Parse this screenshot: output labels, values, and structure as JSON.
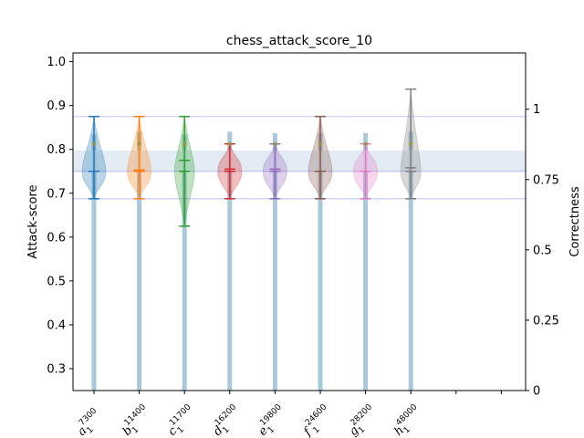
{
  "chart_data": {
    "type": "violin",
    "title": "chess_attack_score_10",
    "ylabel": "Attack-score",
    "y2label": "Correctness",
    "ylim": [
      0.25,
      1.02
    ],
    "y2lim": [
      0,
      1.2
    ],
    "yticks": [
      "0.3",
      "0.4",
      "0.5",
      "0.6",
      "0.7",
      "0.8",
      "0.9",
      "1.0"
    ],
    "y2ticks": [
      "0",
      "0.25",
      "0.5",
      "0.75",
      "1"
    ],
    "reference_lines": [
      0.6875,
      0.75,
      0.875
    ],
    "reference_band": [
      0.75,
      0.7975
    ],
    "categories": [
      {
        "letter": "a",
        "sub": "1",
        "sup": "7300"
      },
      {
        "letter": "b",
        "sub": "1",
        "sup": "11400"
      },
      {
        "letter": "c",
        "sub": "1",
        "sup": "11700"
      },
      {
        "letter": "d",
        "sub": "1",
        "sup": "16200"
      },
      {
        "letter": "e",
        "sub": "1",
        "sup": "19800"
      },
      {
        "letter": "f",
        "sub": "1",
        "sup": "24600"
      },
      {
        "letter": "g",
        "sub": "1",
        "sup": "28200"
      },
      {
        "letter": "h",
        "sub": "1",
        "sup": "48000"
      }
    ],
    "series": [
      {
        "color": "#1f77b4",
        "min": 0.6875,
        "max": 0.875,
        "mean": 0.75,
        "median": 0.75,
        "dot": 0.8125,
        "correctness": 0.91
      },
      {
        "color": "#ff7f0e",
        "min": 0.6875,
        "max": 0.875,
        "mean": 0.753,
        "median": 0.75,
        "dot": 0.8125,
        "correctness": 0.92
      },
      {
        "color": "#2ca02c",
        "min": 0.625,
        "max": 0.875,
        "mean": 0.775,
        "median": 0.75,
        "dot": 0.8125,
        "correctness": 0.91
      },
      {
        "color": "#d62728",
        "min": 0.6875,
        "max": 0.8125,
        "mean": 0.755,
        "median": 0.75,
        "dot": 0.8125,
        "correctness": 0.92
      },
      {
        "color": "#9467bd",
        "min": 0.6875,
        "max": 0.8125,
        "mean": 0.755,
        "median": 0.75,
        "dot": 0.8125,
        "correctness": 0.915
      },
      {
        "color": "#8c564b",
        "min": 0.6875,
        "max": 0.875,
        "mean": 0.75,
        "median": 0.75,
        "dot": 0.8125,
        "correctness": 0.915
      },
      {
        "color": "#e377c2",
        "min": 0.6875,
        "max": 0.8125,
        "mean": 0.75,
        "median": 0.75,
        "dot": 0.8125,
        "correctness": 0.915
      },
      {
        "color": "#7f7f7f",
        "min": 0.6875,
        "max": 0.9375,
        "mean": 0.758,
        "median": 0.75,
        "dot": 0.8125,
        "correctness": 0.92
      }
    ],
    "colors": {
      "bar": "#a9c8dc",
      "band": "#dce7f3",
      "refline": "#0000ff"
    }
  }
}
